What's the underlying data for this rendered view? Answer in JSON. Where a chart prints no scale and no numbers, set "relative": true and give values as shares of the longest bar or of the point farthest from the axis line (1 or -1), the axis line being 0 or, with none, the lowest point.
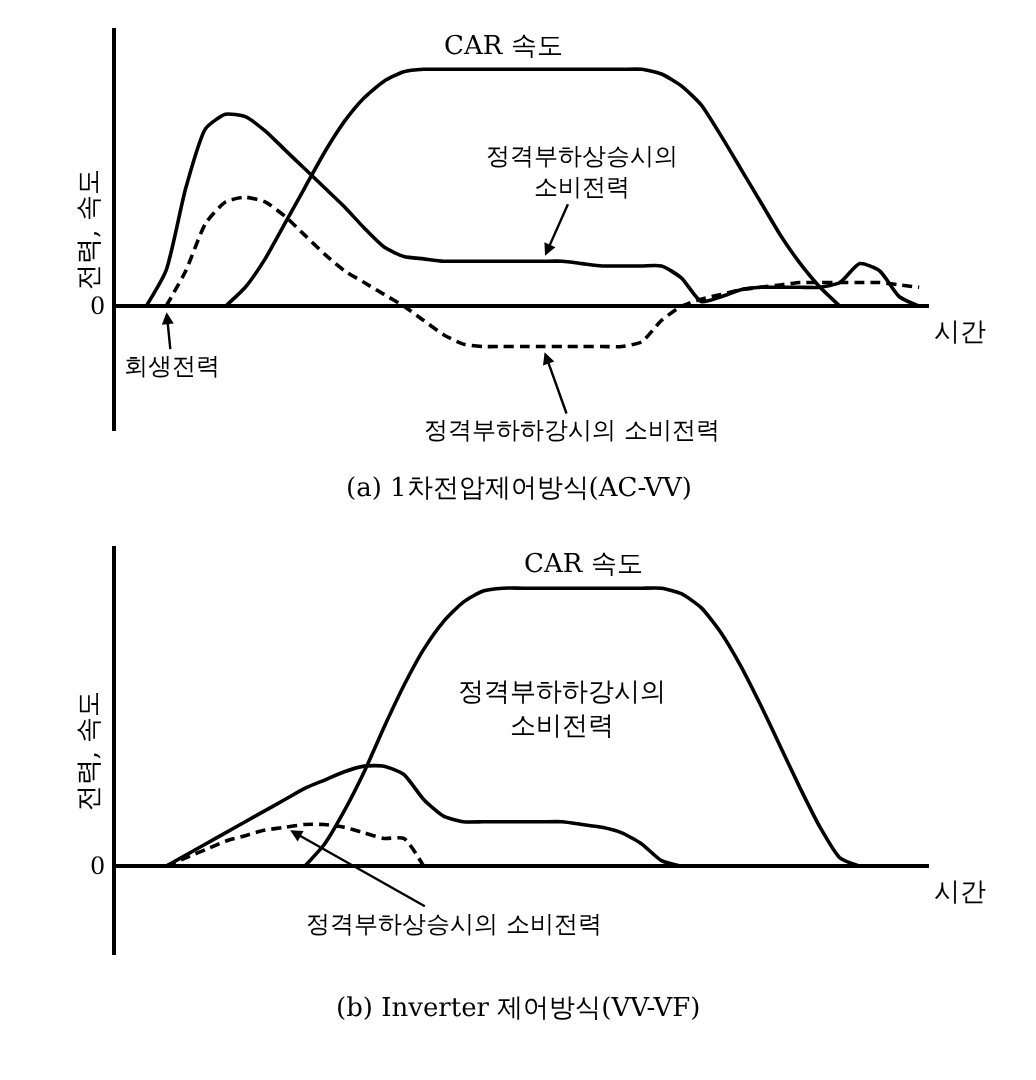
{
  "chart_data": [
    {
      "type": "line",
      "relative": true,
      "title": "(a) 1차전압제어방식(AC-VV)",
      "xlabel": "시간",
      "ylabel": "전력, 속도",
      "line_style": "solid",
      "marker": "none",
      "grid": false,
      "legend": false,
      "categories": [
        null,
        null,
        null,
        null,
        null,
        null,
        null,
        null,
        null,
        null,
        null,
        null,
        null,
        null,
        null,
        null,
        null,
        null,
        null,
        null,
        null,
        null,
        null,
        null,
        null,
        null,
        null,
        null,
        null,
        null,
        null,
        null,
        null,
        null,
        null,
        null,
        null,
        null,
        null,
        null,
        null
      ],
      "annotations": [
        "0",
        "CAR 속도",
        "정격부하상승시의\n소비전력",
        "회생전력",
        "정격부하하강시의 소비전력"
      ],
      "series": [
        {
          "color": "#000000",
          "values": [
            null,
            null,
            null,
            null,
            null,
            0,
            0.08,
            0.2,
            0.35,
            0.5,
            0.65,
            0.78,
            0.88,
            0.95,
            0.99,
            1,
            1,
            1,
            1,
            1,
            1,
            1,
            1,
            1,
            1,
            1,
            1,
            0.98,
            0.93,
            0.85,
            0.72,
            0.58,
            0.44,
            0.3,
            0.18,
            0.08,
            0,
            null,
            null,
            null,
            null
          ]
        },
        {
          "color": "#000000",
          "values": [
            null,
            0,
            0.15,
            0.5,
            0.75,
            0.81,
            0.8,
            0.74,
            0.66,
            0.58,
            0.5,
            0.42,
            0.33,
            0.25,
            0.21,
            0.2,
            0.19,
            0.19,
            0.19,
            0.19,
            0.19,
            0.19,
            0.19,
            0.18,
            0.17,
            0.17,
            0.17,
            0.17,
            0.12,
            0.02,
            0.04,
            0.07,
            0.08,
            0.08,
            0.08,
            0.08,
            0.1,
            0.18,
            0.15,
            0.04,
            0
          ]
        },
        {
          "color": "#000000",
          "line_style": "dashed",
          "values": [
            null,
            null,
            0,
            0.15,
            0.35,
            0.44,
            0.46,
            0.44,
            0.38,
            0.3,
            0.22,
            0.15,
            0.1,
            0.05,
            0,
            -0.06,
            -0.12,
            -0.16,
            -0.17,
            -0.17,
            -0.17,
            -0.17,
            -0.17,
            -0.17,
            -0.17,
            -0.17,
            -0.15,
            -0.06,
            0,
            0.03,
            0.05,
            0.07,
            0.08,
            0.09,
            0.1,
            0.1,
            0.1,
            0.1,
            0.1,
            0.09,
            0.08
          ]
        }
      ]
    },
    {
      "type": "line",
      "relative": true,
      "title": "(b) Inverter 제어방식(VV-VF)",
      "xlabel": "시간",
      "ylabel": "전력, 속도",
      "line_style": "solid",
      "marker": "none",
      "grid": false,
      "legend": false,
      "categories": [
        null,
        null,
        null,
        null,
        null,
        null,
        null,
        null,
        null,
        null,
        null,
        null,
        null,
        null,
        null,
        null,
        null,
        null,
        null,
        null,
        null,
        null,
        null,
        null,
        null,
        null,
        null,
        null,
        null,
        null,
        null,
        null,
        null,
        null,
        null,
        null,
        null,
        null,
        null,
        null,
        null
      ],
      "annotations": [
        "0",
        "CAR 속도",
        "정격부하하강시의\n소비전력",
        "정격부하상승시의 소비전력"
      ],
      "series": [
        {
          "color": "#000000",
          "values": [
            null,
            null,
            null,
            null,
            null,
            null,
            null,
            null,
            null,
            0,
            0.08,
            0.2,
            0.34,
            0.5,
            0.65,
            0.78,
            0.88,
            0.95,
            0.99,
            1,
            1,
            1,
            1,
            1,
            1,
            1,
            1,
            1,
            0.98,
            0.93,
            0.84,
            0.72,
            0.58,
            0.43,
            0.28,
            0.14,
            0.03,
            0,
            null,
            null,
            null
          ]
        },
        {
          "color": "#000000",
          "values": [
            null,
            null,
            0,
            0.04,
            0.08,
            0.12,
            0.16,
            0.2,
            0.24,
            0.28,
            0.31,
            0.34,
            0.36,
            0.36,
            0.33,
            0.24,
            0.18,
            0.16,
            0.16,
            0.16,
            0.16,
            0.16,
            0.16,
            0.15,
            0.14,
            0.12,
            0.08,
            0.02,
            0,
            null,
            null,
            null,
            null,
            null,
            null,
            null,
            null,
            null,
            null,
            null,
            null
          ]
        },
        {
          "color": "#000000",
          "line_style": "dashed",
          "values": [
            null,
            null,
            0,
            0.03,
            0.06,
            0.09,
            0.11,
            0.13,
            0.14,
            0.15,
            0.15,
            0.14,
            0.12,
            0.1,
            0.1,
            0,
            null,
            null,
            null,
            null,
            null,
            null,
            null,
            null,
            null,
            null,
            null,
            null,
            null,
            null,
            null,
            null,
            null,
            null,
            null,
            null,
            null,
            null,
            null,
            null,
            null
          ]
        }
      ]
    }
  ]
}
